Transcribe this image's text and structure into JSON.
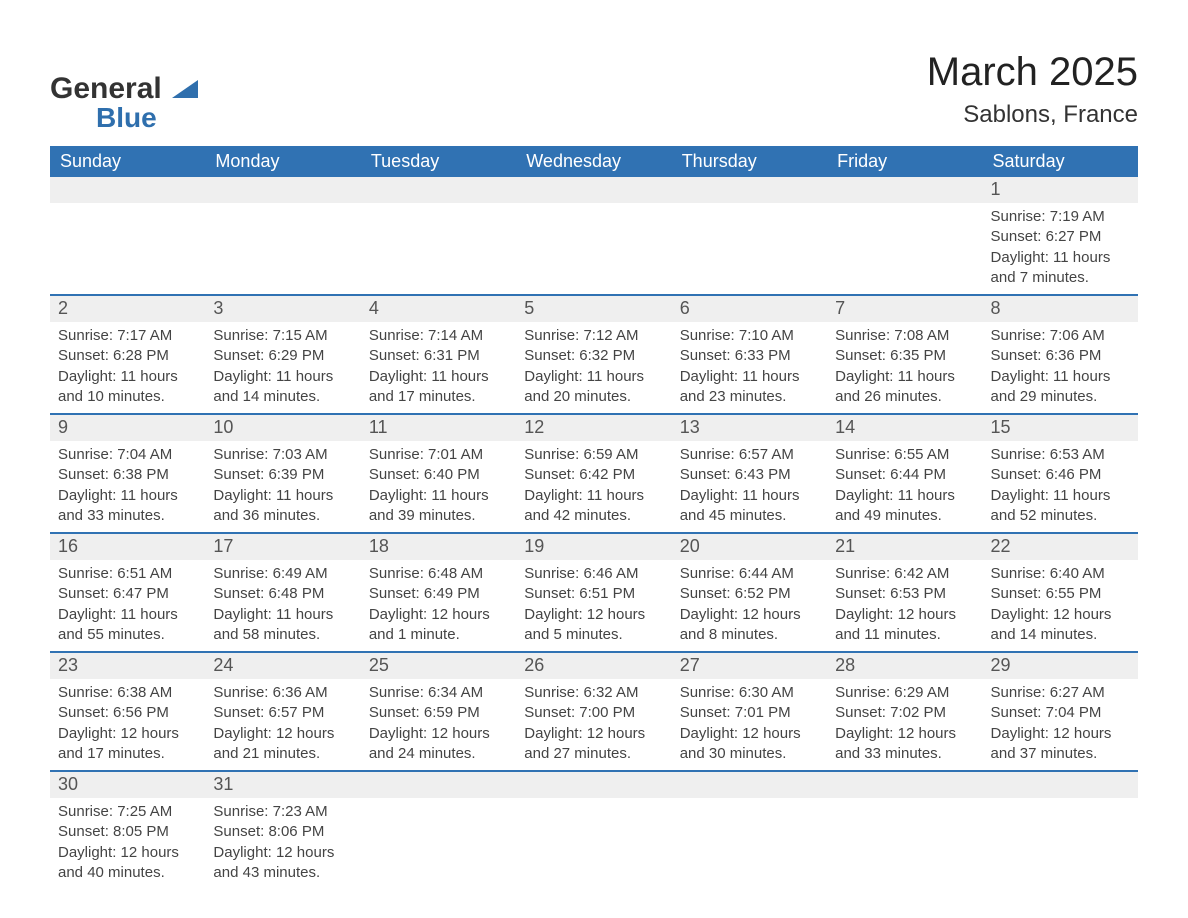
{
  "logo": {
    "line1": "General",
    "line2": "Blue"
  },
  "title": "March 2025",
  "location": "Sablons, France",
  "colors": {
    "header_bg": "#3072b3",
    "header_text": "#ffffff",
    "daynum_bg": "#efefef",
    "row_border": "#3072b3",
    "body_text": "#444444",
    "logo_blue": "#2f6fad"
  },
  "weekdays": [
    "Sunday",
    "Monday",
    "Tuesday",
    "Wednesday",
    "Thursday",
    "Friday",
    "Saturday"
  ],
  "weeks": [
    [
      null,
      null,
      null,
      null,
      null,
      null,
      {
        "n": "1",
        "sunrise": "Sunrise: 7:19 AM",
        "sunset": "Sunset: 6:27 PM",
        "day1": "Daylight: 11 hours",
        "day2": "and 7 minutes."
      }
    ],
    [
      {
        "n": "2",
        "sunrise": "Sunrise: 7:17 AM",
        "sunset": "Sunset: 6:28 PM",
        "day1": "Daylight: 11 hours",
        "day2": "and 10 minutes."
      },
      {
        "n": "3",
        "sunrise": "Sunrise: 7:15 AM",
        "sunset": "Sunset: 6:29 PM",
        "day1": "Daylight: 11 hours",
        "day2": "and 14 minutes."
      },
      {
        "n": "4",
        "sunrise": "Sunrise: 7:14 AM",
        "sunset": "Sunset: 6:31 PM",
        "day1": "Daylight: 11 hours",
        "day2": "and 17 minutes."
      },
      {
        "n": "5",
        "sunrise": "Sunrise: 7:12 AM",
        "sunset": "Sunset: 6:32 PM",
        "day1": "Daylight: 11 hours",
        "day2": "and 20 minutes."
      },
      {
        "n": "6",
        "sunrise": "Sunrise: 7:10 AM",
        "sunset": "Sunset: 6:33 PM",
        "day1": "Daylight: 11 hours",
        "day2": "and 23 minutes."
      },
      {
        "n": "7",
        "sunrise": "Sunrise: 7:08 AM",
        "sunset": "Sunset: 6:35 PM",
        "day1": "Daylight: 11 hours",
        "day2": "and 26 minutes."
      },
      {
        "n": "8",
        "sunrise": "Sunrise: 7:06 AM",
        "sunset": "Sunset: 6:36 PM",
        "day1": "Daylight: 11 hours",
        "day2": "and 29 minutes."
      }
    ],
    [
      {
        "n": "9",
        "sunrise": "Sunrise: 7:04 AM",
        "sunset": "Sunset: 6:38 PM",
        "day1": "Daylight: 11 hours",
        "day2": "and 33 minutes."
      },
      {
        "n": "10",
        "sunrise": "Sunrise: 7:03 AM",
        "sunset": "Sunset: 6:39 PM",
        "day1": "Daylight: 11 hours",
        "day2": "and 36 minutes."
      },
      {
        "n": "11",
        "sunrise": "Sunrise: 7:01 AM",
        "sunset": "Sunset: 6:40 PM",
        "day1": "Daylight: 11 hours",
        "day2": "and 39 minutes."
      },
      {
        "n": "12",
        "sunrise": "Sunrise: 6:59 AM",
        "sunset": "Sunset: 6:42 PM",
        "day1": "Daylight: 11 hours",
        "day2": "and 42 minutes."
      },
      {
        "n": "13",
        "sunrise": "Sunrise: 6:57 AM",
        "sunset": "Sunset: 6:43 PM",
        "day1": "Daylight: 11 hours",
        "day2": "and 45 minutes."
      },
      {
        "n": "14",
        "sunrise": "Sunrise: 6:55 AM",
        "sunset": "Sunset: 6:44 PM",
        "day1": "Daylight: 11 hours",
        "day2": "and 49 minutes."
      },
      {
        "n": "15",
        "sunrise": "Sunrise: 6:53 AM",
        "sunset": "Sunset: 6:46 PM",
        "day1": "Daylight: 11 hours",
        "day2": "and 52 minutes."
      }
    ],
    [
      {
        "n": "16",
        "sunrise": "Sunrise: 6:51 AM",
        "sunset": "Sunset: 6:47 PM",
        "day1": "Daylight: 11 hours",
        "day2": "and 55 minutes."
      },
      {
        "n": "17",
        "sunrise": "Sunrise: 6:49 AM",
        "sunset": "Sunset: 6:48 PM",
        "day1": "Daylight: 11 hours",
        "day2": "and 58 minutes."
      },
      {
        "n": "18",
        "sunrise": "Sunrise: 6:48 AM",
        "sunset": "Sunset: 6:49 PM",
        "day1": "Daylight: 12 hours",
        "day2": "and 1 minute."
      },
      {
        "n": "19",
        "sunrise": "Sunrise: 6:46 AM",
        "sunset": "Sunset: 6:51 PM",
        "day1": "Daylight: 12 hours",
        "day2": "and 5 minutes."
      },
      {
        "n": "20",
        "sunrise": "Sunrise: 6:44 AM",
        "sunset": "Sunset: 6:52 PM",
        "day1": "Daylight: 12 hours",
        "day2": "and 8 minutes."
      },
      {
        "n": "21",
        "sunrise": "Sunrise: 6:42 AM",
        "sunset": "Sunset: 6:53 PM",
        "day1": "Daylight: 12 hours",
        "day2": "and 11 minutes."
      },
      {
        "n": "22",
        "sunrise": "Sunrise: 6:40 AM",
        "sunset": "Sunset: 6:55 PM",
        "day1": "Daylight: 12 hours",
        "day2": "and 14 minutes."
      }
    ],
    [
      {
        "n": "23",
        "sunrise": "Sunrise: 6:38 AM",
        "sunset": "Sunset: 6:56 PM",
        "day1": "Daylight: 12 hours",
        "day2": "and 17 minutes."
      },
      {
        "n": "24",
        "sunrise": "Sunrise: 6:36 AM",
        "sunset": "Sunset: 6:57 PM",
        "day1": "Daylight: 12 hours",
        "day2": "and 21 minutes."
      },
      {
        "n": "25",
        "sunrise": "Sunrise: 6:34 AM",
        "sunset": "Sunset: 6:59 PM",
        "day1": "Daylight: 12 hours",
        "day2": "and 24 minutes."
      },
      {
        "n": "26",
        "sunrise": "Sunrise: 6:32 AM",
        "sunset": "Sunset: 7:00 PM",
        "day1": "Daylight: 12 hours",
        "day2": "and 27 minutes."
      },
      {
        "n": "27",
        "sunrise": "Sunrise: 6:30 AM",
        "sunset": "Sunset: 7:01 PM",
        "day1": "Daylight: 12 hours",
        "day2": "and 30 minutes."
      },
      {
        "n": "28",
        "sunrise": "Sunrise: 6:29 AM",
        "sunset": "Sunset: 7:02 PM",
        "day1": "Daylight: 12 hours",
        "day2": "and 33 minutes."
      },
      {
        "n": "29",
        "sunrise": "Sunrise: 6:27 AM",
        "sunset": "Sunset: 7:04 PM",
        "day1": "Daylight: 12 hours",
        "day2": "and 37 minutes."
      }
    ],
    [
      {
        "n": "30",
        "sunrise": "Sunrise: 7:25 AM",
        "sunset": "Sunset: 8:05 PM",
        "day1": "Daylight: 12 hours",
        "day2": "and 40 minutes."
      },
      {
        "n": "31",
        "sunrise": "Sunrise: 7:23 AM",
        "sunset": "Sunset: 8:06 PM",
        "day1": "Daylight: 12 hours",
        "day2": "and 43 minutes."
      },
      null,
      null,
      null,
      null,
      null
    ]
  ]
}
